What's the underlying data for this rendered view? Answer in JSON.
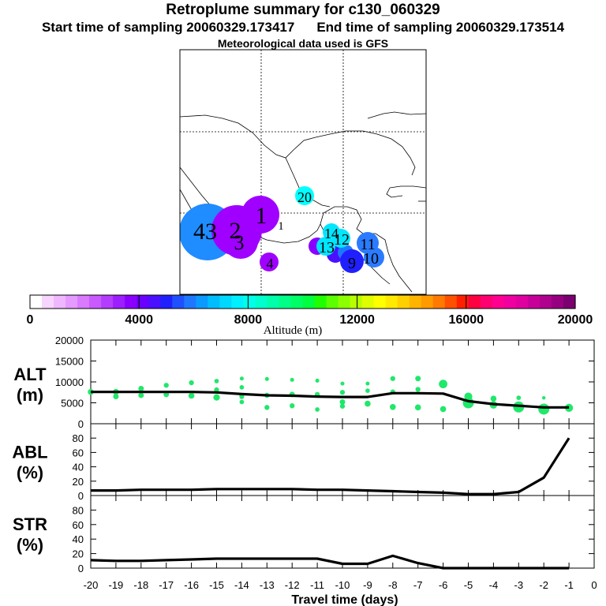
{
  "header": {
    "title": "Retroplume summary for c130_060329",
    "start_label": "Start time of sampling 20060329.173417",
    "end_label": "End time of sampling 20060329.173514",
    "met_label": "Meteorological data used is GFS"
  },
  "colorbar": {
    "tick_labels": [
      "0",
      "4000",
      "8000",
      "12000",
      "16000",
      "20000"
    ],
    "title": "Altitude (m)",
    "range": [
      0,
      20000
    ]
  },
  "map": {
    "plume_markers": [
      {
        "label": "1",
        "color": "#9f00ff",
        "size": "large"
      },
      {
        "label": "1",
        "color": "#7a00ff",
        "size": "small"
      },
      {
        "label": "2",
        "color": "#9f00ff",
        "size": "large"
      },
      {
        "label": "3",
        "color": "#9f00ff",
        "size": "large"
      },
      {
        "label": "4",
        "color": "#9f00ff",
        "size": "small"
      },
      {
        "label": "9",
        "color": "#2020ff",
        "size": "small"
      },
      {
        "label": "10",
        "color": "#2a7bff",
        "size": "small"
      },
      {
        "label": "11",
        "color": "#2a7bff",
        "size": "small"
      },
      {
        "label": "12",
        "color": "#00e6ff",
        "size": "small"
      },
      {
        "label": "13",
        "color": "#00e6ff",
        "size": "small"
      },
      {
        "label": "14",
        "color": "#00e6ff",
        "size": "small"
      },
      {
        "label": "20",
        "color": "#00ffff",
        "size": "small"
      },
      {
        "label": "43",
        "color": "#1f8cff",
        "size": "large"
      }
    ]
  },
  "chart_data": {
    "type": "line",
    "x": [
      -20,
      -19,
      -18,
      -17,
      -16,
      -15,
      -14,
      -13,
      -12,
      -11,
      -10,
      -9,
      -8,
      -7,
      -6,
      -5,
      -4,
      -3,
      -2,
      -1
    ],
    "xlabel": "Travel time (days)",
    "xlim": [
      -20,
      0
    ],
    "x_tick_labels": [
      "-20",
      "-19",
      "-18",
      "-17",
      "-16",
      "-15",
      "-14",
      "-13",
      "-12",
      "-11",
      "-10",
      "-9",
      "-8",
      "-7",
      "-6",
      "-5",
      "-4",
      "-3",
      "-2",
      "-1",
      "0"
    ],
    "panels": [
      {
        "name": "ALT",
        "ylabel_line1": "ALT",
        "ylabel_line2": "(m)",
        "ylim": [
          0,
          20000
        ],
        "y_ticks": [
          0,
          5000,
          10000,
          15000,
          20000
        ],
        "y_tick_labels": [
          "0",
          "5000",
          "10000",
          "15000",
          "20000"
        ],
        "mean": [
          7600,
          7600,
          7600,
          7600,
          7600,
          7500,
          7100,
          6800,
          6700,
          6500,
          6400,
          6400,
          7300,
          7300,
          7200,
          5400,
          4700,
          4300,
          3900,
          3900
        ],
        "scatter": [
          {
            "x": -20,
            "y": 7600,
            "s": 1
          },
          {
            "x": -19,
            "y": 7600,
            "s": 1
          },
          {
            "x": -19,
            "y": 6500,
            "s": 0.9
          },
          {
            "x": -18,
            "y": 8400,
            "s": 0.9
          },
          {
            "x": -18,
            "y": 6800,
            "s": 0.9
          },
          {
            "x": -17,
            "y": 9200,
            "s": 0.8
          },
          {
            "x": -17,
            "y": 7000,
            "s": 0.9
          },
          {
            "x": -16,
            "y": 9800,
            "s": 0.8
          },
          {
            "x": -16,
            "y": 6700,
            "s": 1
          },
          {
            "x": -15,
            "y": 10200,
            "s": 0.7
          },
          {
            "x": -15,
            "y": 8100,
            "s": 0.8
          },
          {
            "x": -15,
            "y": 6300,
            "s": 1.1
          },
          {
            "x": -14,
            "y": 10800,
            "s": 0.6
          },
          {
            "x": -14,
            "y": 8700,
            "s": 0.7
          },
          {
            "x": -14,
            "y": 6500,
            "s": 0.8
          },
          {
            "x": -14,
            "y": 5200,
            "s": 0.7
          },
          {
            "x": -13,
            "y": 10700,
            "s": 0.6
          },
          {
            "x": -13,
            "y": 6800,
            "s": 0.8
          },
          {
            "x": -13,
            "y": 3900,
            "s": 0.8
          },
          {
            "x": -12,
            "y": 10500,
            "s": 0.6
          },
          {
            "x": -12,
            "y": 7000,
            "s": 0.9
          },
          {
            "x": -12,
            "y": 4300,
            "s": 0.8
          },
          {
            "x": -11,
            "y": 10300,
            "s": 0.6
          },
          {
            "x": -11,
            "y": 7000,
            "s": 0.8
          },
          {
            "x": -11,
            "y": 3400,
            "s": 0.7
          },
          {
            "x": -10,
            "y": 9600,
            "s": 0.6
          },
          {
            "x": -10,
            "y": 7500,
            "s": 0.8
          },
          {
            "x": -10,
            "y": 5200,
            "s": 0.9
          },
          {
            "x": -10,
            "y": 4200,
            "s": 0.8
          },
          {
            "x": -9,
            "y": 9600,
            "s": 0.6
          },
          {
            "x": -9,
            "y": 7900,
            "s": 0.7
          },
          {
            "x": -9,
            "y": 4800,
            "s": 1
          },
          {
            "x": -8,
            "y": 10800,
            "s": 0.8
          },
          {
            "x": -8,
            "y": 7600,
            "s": 0.8
          },
          {
            "x": -8,
            "y": 4000,
            "s": 1
          },
          {
            "x": -7,
            "y": 10800,
            "s": 0.9
          },
          {
            "x": -7,
            "y": 8200,
            "s": 0.8
          },
          {
            "x": -7,
            "y": 3900,
            "s": 1
          },
          {
            "x": -6,
            "y": 9500,
            "s": 1.5
          },
          {
            "x": -6,
            "y": 3500,
            "s": 1
          },
          {
            "x": -5,
            "y": 6500,
            "s": 1.4
          },
          {
            "x": -5,
            "y": 5000,
            "s": 2
          },
          {
            "x": -4,
            "y": 6000,
            "s": 1
          },
          {
            "x": -4,
            "y": 4500,
            "s": 1.3
          },
          {
            "x": -3,
            "y": 6200,
            "s": 0.7
          },
          {
            "x": -3,
            "y": 4000,
            "s": 2
          },
          {
            "x": -2,
            "y": 6200,
            "s": 0.5
          },
          {
            "x": -2,
            "y": 3500,
            "s": 2
          },
          {
            "x": -1,
            "y": 3800,
            "s": 1.4
          }
        ]
      },
      {
        "name": "ABL",
        "ylabel_line1": "ABL",
        "ylabel_line2": "(%)",
        "ylim": [
          0,
          100
        ],
        "y_ticks": [
          0,
          20,
          40,
          60,
          80
        ],
        "y_tick_labels": [
          "0",
          "20",
          "40",
          "60",
          "80"
        ],
        "values": [
          7,
          7,
          8,
          8,
          8,
          9,
          9,
          9,
          9,
          8,
          8,
          7,
          6,
          5,
          4,
          2,
          2,
          5,
          25,
          80
        ]
      },
      {
        "name": "STR",
        "ylabel_line1": "STR",
        "ylabel_line2": "(%)",
        "ylim": [
          0,
          100
        ],
        "y_ticks": [
          0,
          20,
          40,
          60,
          80
        ],
        "y_tick_labels": [
          "0",
          "20",
          "40",
          "60",
          "80"
        ],
        "values": [
          11,
          10,
          10,
          11,
          12,
          13,
          13,
          13,
          13,
          13,
          6,
          6,
          17,
          7,
          0,
          0,
          0,
          0,
          0,
          0
        ]
      }
    ]
  }
}
